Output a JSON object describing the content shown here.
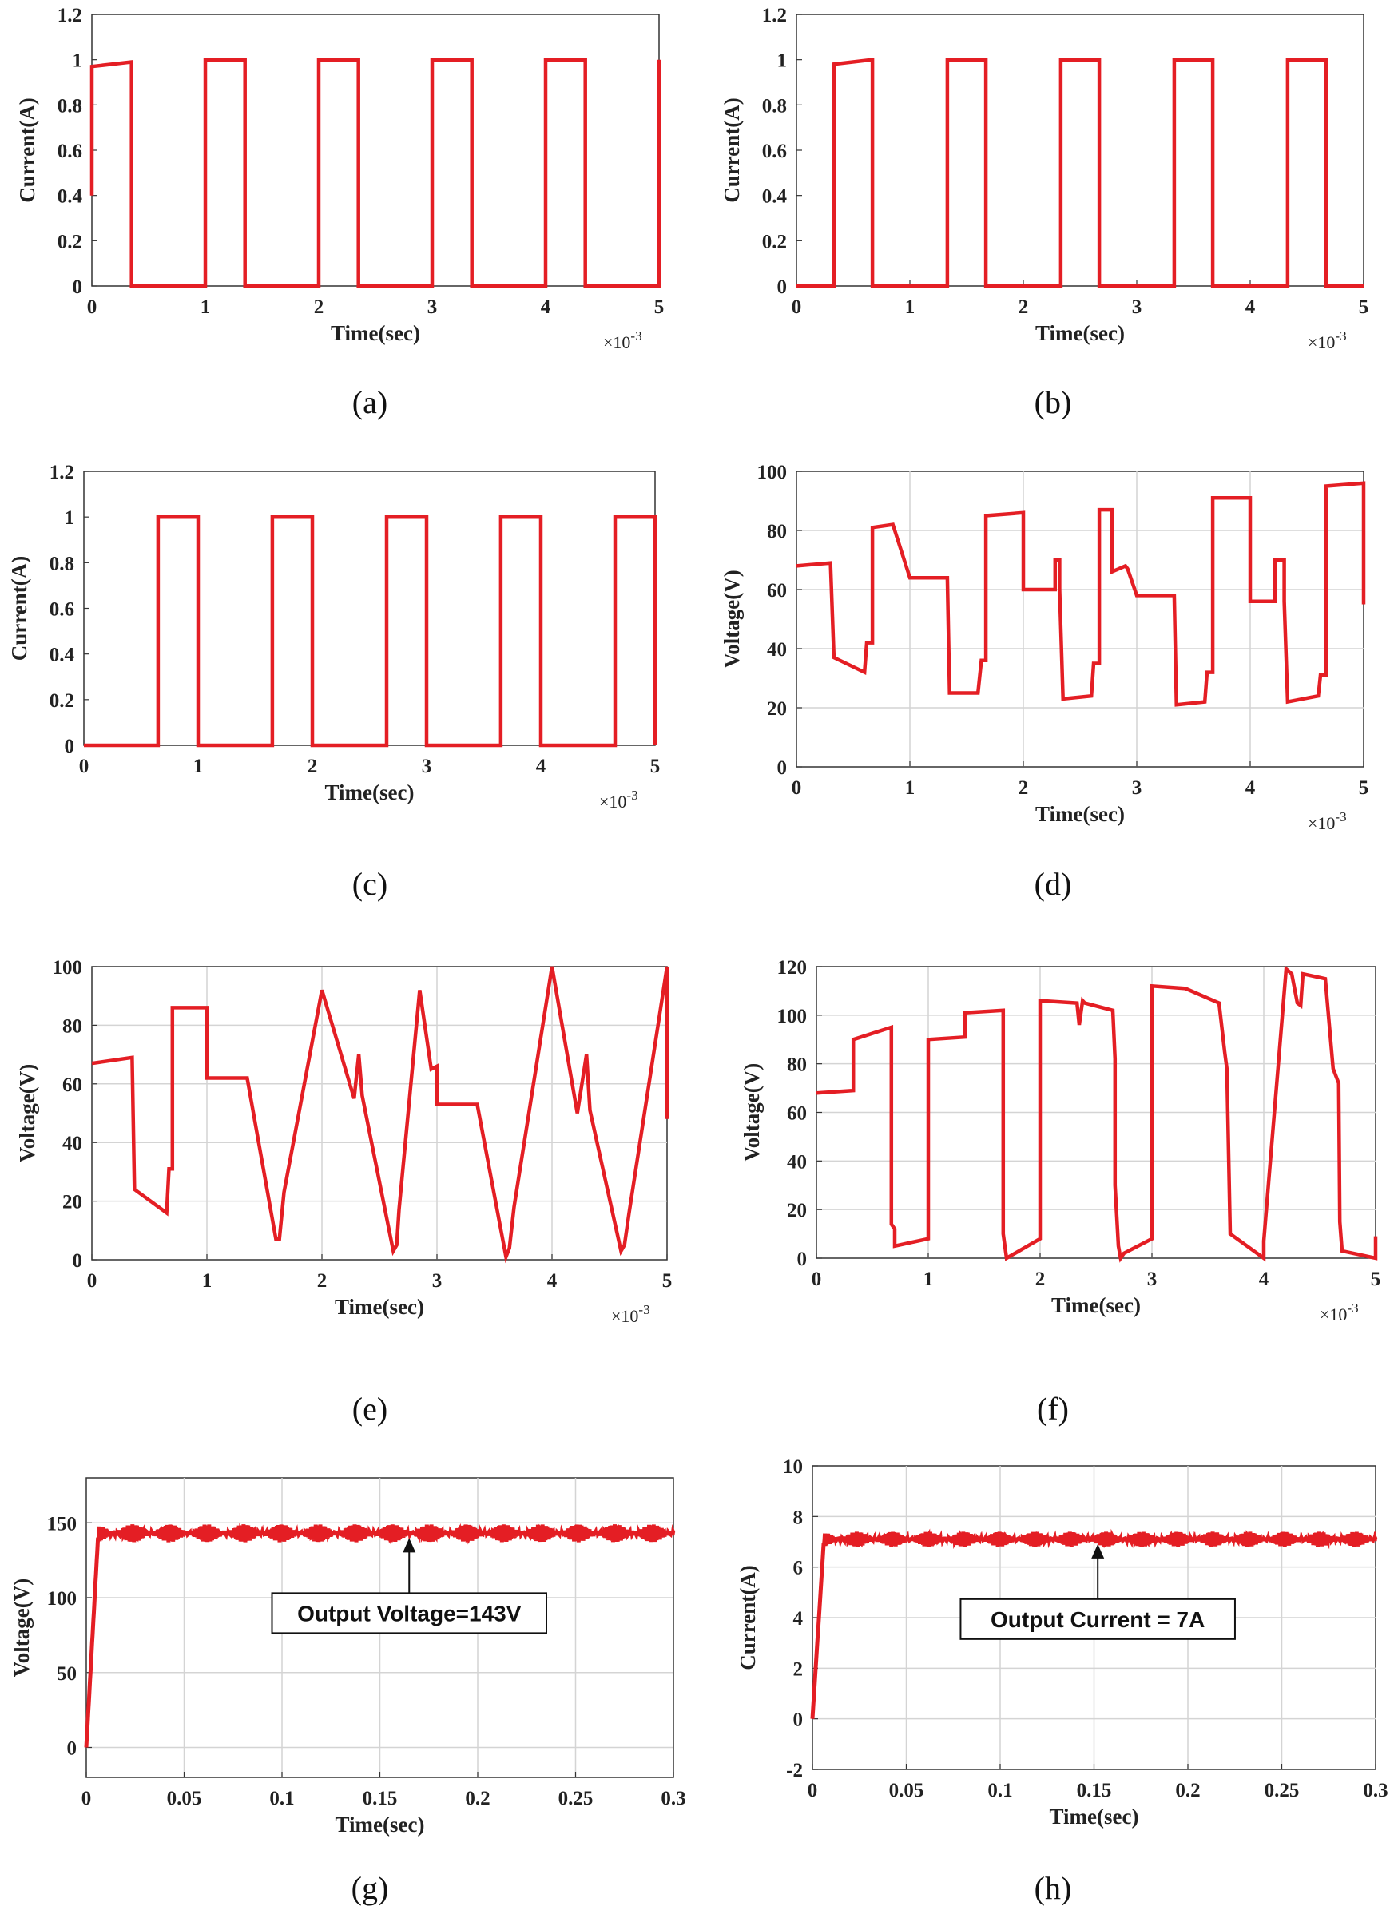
{
  "figure": {
    "accent_color": "#e41e24",
    "captions": [
      "(a)",
      "(b)",
      "(c)",
      "(d)",
      "(e)",
      "(f)",
      "(g)",
      "(h)"
    ]
  },
  "chart_data": [
    {
      "id": "a",
      "type": "line",
      "xlabel": "Time(sec)",
      "ylabel": "Current(A)",
      "xlim": [
        0,
        5
      ],
      "ylim": [
        0,
        1.2
      ],
      "x_multiplier": "×10",
      "x_multiplier_exp": "-3",
      "xticks": [
        0,
        1,
        2,
        3,
        4,
        5
      ],
      "yticks": [
        0,
        0.2,
        0.4,
        0.6,
        0.8,
        1,
        1.2
      ],
      "grid": false,
      "series": [
        {
          "name": "current",
          "color": "#e41e24",
          "x": [
            0,
            0,
            0.35,
            0.35,
            1,
            1,
            1.35,
            1.35,
            2,
            2,
            2.35,
            2.35,
            3,
            3,
            3.35,
            3.35,
            4,
            4,
            4.35,
            4.35,
            5,
            5
          ],
          "y": [
            0.4,
            0.97,
            0.99,
            0,
            0,
            1,
            1,
            0,
            0,
            1,
            1,
            0,
            0,
            1,
            1,
            0,
            0,
            1,
            1,
            0,
            0,
            1
          ]
        }
      ]
    },
    {
      "id": "b",
      "type": "line",
      "xlabel": "Time(sec)",
      "ylabel": "Current(A)",
      "xlim": [
        0,
        5
      ],
      "ylim": [
        0,
        1.2
      ],
      "x_multiplier": "×10",
      "x_multiplier_exp": "-3",
      "xticks": [
        0,
        1,
        2,
        3,
        4,
        5
      ],
      "yticks": [
        0,
        0.2,
        0.4,
        0.6,
        0.8,
        1,
        1.2
      ],
      "grid": false,
      "series": [
        {
          "name": "current",
          "color": "#e41e24",
          "x": [
            0,
            0.33,
            0.33,
            0.67,
            0.67,
            1.33,
            1.33,
            1.67,
            1.67,
            2.33,
            2.33,
            2.67,
            2.67,
            3.33,
            3.33,
            3.67,
            3.67,
            4.33,
            4.33,
            4.67,
            4.67,
            5
          ],
          "y": [
            0,
            0,
            0.98,
            1,
            0,
            0,
            1,
            1,
            0,
            0,
            1,
            1,
            0,
            0,
            1,
            1,
            0,
            0,
            1,
            1,
            0,
            0
          ]
        }
      ]
    },
    {
      "id": "c",
      "type": "line",
      "xlabel": "Time(sec)",
      "ylabel": "Current(A)",
      "xlim": [
        0,
        5
      ],
      "ylim": [
        0,
        1.2
      ],
      "x_multiplier": "×10",
      "x_multiplier_exp": "-3",
      "xticks": [
        0,
        1,
        2,
        3,
        4,
        5
      ],
      "yticks": [
        0,
        0.2,
        0.4,
        0.6,
        0.8,
        1,
        1.2
      ],
      "grid": false,
      "series": [
        {
          "name": "current",
          "color": "#e41e24",
          "x": [
            0,
            0.65,
            0.65,
            1,
            1,
            1.65,
            1.65,
            2,
            2,
            2.65,
            2.65,
            3,
            3,
            3.65,
            3.65,
            4,
            4,
            4.65,
            4.65,
            5,
            5
          ],
          "y": [
            0,
            0,
            1,
            1,
            0,
            0,
            1,
            1,
            0,
            0,
            1,
            1,
            0,
            0,
            1,
            1,
            0,
            0,
            1,
            1,
            0
          ]
        }
      ]
    },
    {
      "id": "d",
      "type": "line",
      "xlabel": "Time(sec)",
      "ylabel": "Voltage(V)",
      "xlim": [
        0,
        5
      ],
      "ylim": [
        0,
        100
      ],
      "x_multiplier": "×10",
      "x_multiplier_exp": "-3",
      "xticks": [
        0,
        1,
        2,
        3,
        4,
        5
      ],
      "yticks": [
        0,
        20,
        40,
        60,
        80,
        100
      ],
      "grid": true,
      "series": [
        {
          "name": "voltage",
          "color": "#e41e24",
          "x": [
            0,
            0.3,
            0.33,
            0.6,
            0.62,
            0.67,
            0.67,
            0.85,
            0.85,
            1,
            1,
            1.33,
            1.35,
            1.6,
            1.63,
            1.67,
            1.67,
            2,
            2,
            2.28,
            2.28,
            2.32,
            2.32,
            2.35,
            2.6,
            2.62,
            2.67,
            2.67,
            2.78,
            2.78,
            2.9,
            2.92,
            3,
            3,
            3.33,
            3.35,
            3.6,
            3.62,
            3.67,
            3.67,
            4,
            4,
            4.22,
            4.22,
            4.3,
            4.3,
            4.33,
            4.6,
            4.62,
            4.67,
            4.67,
            5,
            5
          ],
          "y": [
            68,
            69,
            37,
            32,
            42,
            42,
            81,
            82,
            82,
            64,
            64,
            64,
            25,
            25,
            36,
            36,
            85,
            86,
            60,
            60,
            70,
            70,
            60,
            23,
            24,
            35,
            35,
            87,
            87,
            66,
            68,
            67,
            58,
            58,
            58,
            21,
            22,
            32,
            32,
            91,
            91,
            56,
            56,
            70,
            70,
            56,
            22,
            24,
            31,
            31,
            95,
            96,
            55
          ]
        }
      ]
    },
    {
      "id": "e",
      "type": "line",
      "xlabel": "Time(sec)",
      "ylabel": "Voltage(V)",
      "xlim": [
        0,
        5
      ],
      "ylim": [
        0,
        100
      ],
      "x_multiplier": "×10",
      "x_multiplier_exp": "-3",
      "xticks": [
        0,
        1,
        2,
        3,
        4,
        5
      ],
      "yticks": [
        0,
        20,
        40,
        60,
        80,
        100
      ],
      "grid": true,
      "series": [
        {
          "name": "voltage",
          "color": "#e41e24",
          "x": [
            0,
            0.35,
            0.37,
            0.65,
            0.67,
            0.7,
            0.7,
            1,
            1,
            1.33,
            1.35,
            1.6,
            1.63,
            1.67,
            1.67,
            2,
            2,
            2.28,
            2.28,
            2.32,
            2.32,
            2.35,
            2.62,
            2.65,
            2.67,
            2.67,
            2.85,
            2.85,
            2.95,
            3,
            3,
            3.33,
            3.35,
            3.6,
            3.63,
            3.67,
            3.67,
            4,
            4,
            4.22,
            4.22,
            4.3,
            4.3,
            4.33,
            4.6,
            4.63,
            4.67,
            4.67,
            5,
            5
          ],
          "y": [
            67,
            69,
            24,
            16,
            31,
            31,
            86,
            86,
            62,
            62,
            62,
            7,
            7,
            23,
            23,
            92,
            92,
            55,
            55,
            70,
            70,
            56,
            3,
            5,
            17,
            17,
            92,
            92,
            65,
            66,
            53,
            53,
            53,
            1,
            4,
            18,
            18,
            100,
            100,
            50,
            50,
            70,
            70,
            51,
            3,
            5,
            16,
            16,
            100,
            48
          ]
        }
      ]
    },
    {
      "id": "f",
      "type": "line",
      "xlabel": "Time(sec)",
      "ylabel": "Voltage(V)",
      "xlim": [
        0,
        5
      ],
      "ylim": [
        0,
        120
      ],
      "x_multiplier": "×10",
      "x_multiplier_exp": "-3",
      "xticks": [
        0,
        1,
        2,
        3,
        4,
        5
      ],
      "yticks": [
        0,
        20,
        40,
        60,
        80,
        100,
        120
      ],
      "grid": true,
      "series": [
        {
          "name": "voltage",
          "color": "#e41e24",
          "x": [
            0,
            0.33,
            0.33,
            0.67,
            0.67,
            0.7,
            0.7,
            1,
            1,
            1.33,
            1.33,
            1.67,
            1.67,
            1.7,
            2,
            2,
            2.33,
            2.35,
            2.38,
            2.4,
            2.65,
            2.67,
            2.67,
            2.7,
            2.72,
            2.75,
            3,
            3,
            3.3,
            3.6,
            3.65,
            3.67,
            3.7,
            4,
            4,
            4.2,
            4.25,
            4.3,
            4.33,
            4.35,
            4.55,
            4.62,
            4.67,
            4.68,
            4.7,
            5,
            5
          ],
          "y": [
            68,
            69,
            90,
            95,
            14,
            12,
            5,
            8,
            90,
            91,
            101,
            102,
            10,
            0,
            8,
            106,
            105,
            96,
            106,
            105,
            102,
            82,
            30,
            5,
            0,
            2,
            8,
            112,
            111,
            105,
            85,
            78,
            10,
            0,
            7,
            119,
            117,
            105,
            104,
            117,
            115,
            78,
            72,
            15,
            3,
            0,
            9
          ]
        }
      ]
    },
    {
      "id": "g",
      "type": "line",
      "xlabel": "Time(sec)",
      "ylabel": "Voltage(V)",
      "xlim": [
        0,
        0.3
      ],
      "ylim": [
        -20,
        180
      ],
      "x_multiplier": "",
      "x_multiplier_exp": "",
      "xticks": [
        0,
        0.05,
        0.1,
        0.15,
        0.2,
        0.25,
        0.3
      ],
      "xtick_labels": [
        "0",
        "0.05",
        "0.1",
        "0.15",
        "0.2",
        "0.25",
        "0.3"
      ],
      "yticks": [
        0,
        50,
        100,
        150
      ],
      "grid": true,
      "steady_value": 143,
      "ripple": 6,
      "rise_time": 0.006,
      "annotation": {
        "text": "Output Voltage=143V",
        "x": 0.165,
        "y": 143
      },
      "series": [
        {
          "name": "output voltage",
          "color": "#e41e24"
        }
      ]
    },
    {
      "id": "h",
      "type": "line",
      "xlabel": "Time(sec)",
      "ylabel": "Current(A)",
      "xlim": [
        0,
        0.3
      ],
      "ylim": [
        -2,
        10
      ],
      "x_multiplier": "",
      "x_multiplier_exp": "",
      "xticks": [
        0,
        0.05,
        0.1,
        0.15,
        0.2,
        0.25,
        0.3
      ],
      "xtick_labels": [
        "0",
        "0.05",
        "0.1",
        "0.15",
        "0.2",
        "0.25",
        "0.3"
      ],
      "yticks": [
        -2,
        0,
        2,
        4,
        6,
        8,
        10
      ],
      "grid": true,
      "steady_value": 7.1,
      "ripple": 0.3,
      "rise_time": 0.006,
      "annotation": {
        "text": "Output Current = 7A",
        "x": 0.152,
        "y": 7.1
      },
      "series": [
        {
          "name": "output current",
          "color": "#e41e24"
        }
      ]
    }
  ]
}
